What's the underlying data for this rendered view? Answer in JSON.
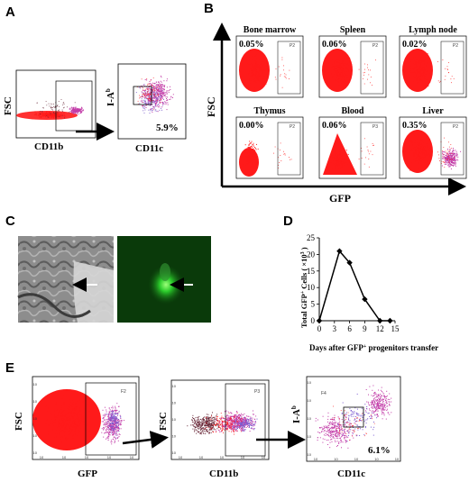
{
  "panels": {
    "A": {
      "letter": "A",
      "left_y": "FSC",
      "left_x": "CD11b",
      "right_y": "I-A",
      "right_y_sup": "b",
      "right_x": "CD11c",
      "right_pct": "5.9%"
    },
    "B": {
      "letter": "B",
      "y_axis": "FSC",
      "x_axis": "GFP",
      "tissues": [
        {
          "name": "Bone marrow",
          "pct": "0.05%",
          "gate": "P2"
        },
        {
          "name": "Spleen",
          "pct": "0.06%",
          "gate": "P2"
        },
        {
          "name": "Lymph node",
          "pct": "0.02%",
          "gate": "P2"
        },
        {
          "name": "Thymus",
          "pct": "0.00%",
          "gate": "P2"
        },
        {
          "name": "Blood",
          "pct": "0.06%",
          "gate": "P3"
        },
        {
          "name": "Liver",
          "pct": "0.35%",
          "gate": "P2"
        }
      ]
    },
    "C": {
      "letter": "C"
    },
    "D": {
      "letter": "D",
      "ylabel_main": "Total GFP",
      "ylabel_cells": " Cells ( ×10",
      "ylabel_exp": "3",
      "ylabel_close": " )",
      "xlabel": "Days after GFP",
      "xlabel_sup": "+",
      "xlabel_rest": " progenitors transfer",
      "plus": "+"
    },
    "E": {
      "letter": "E",
      "p1_y": "FSC",
      "p1_x": "GFP",
      "p1_gate": "F2",
      "p2_y": "FSC",
      "p2_x": "CD11b",
      "p2_gate": "P3",
      "p3_y": "I-A",
      "p3_y_sup": "b",
      "p3_x": "CD11c",
      "p3_gate": "F4",
      "p3_pct": "6.1%",
      "ticks": [
        "10",
        "10",
        "10",
        "10",
        "10"
      ]
    }
  },
  "chart_data": {
    "type": "line",
    "x": [
      0,
      4,
      6,
      9,
      12,
      14
    ],
    "values": [
      0,
      21,
      17.5,
      6.5,
      0,
      0
    ],
    "xticks": [
      0,
      3,
      6,
      9,
      12,
      15
    ],
    "yticks": [
      0,
      5,
      10,
      15,
      20,
      25
    ],
    "xlim": [
      0,
      15
    ],
    "ylim": [
      0,
      25
    ],
    "marker": "diamond",
    "line_color": "#000000"
  },
  "colors": {
    "red": "#ff1a1a",
    "magenta": "#c23ca8",
    "dark": "#6a2a3a",
    "green": "#0a3a0a"
  }
}
